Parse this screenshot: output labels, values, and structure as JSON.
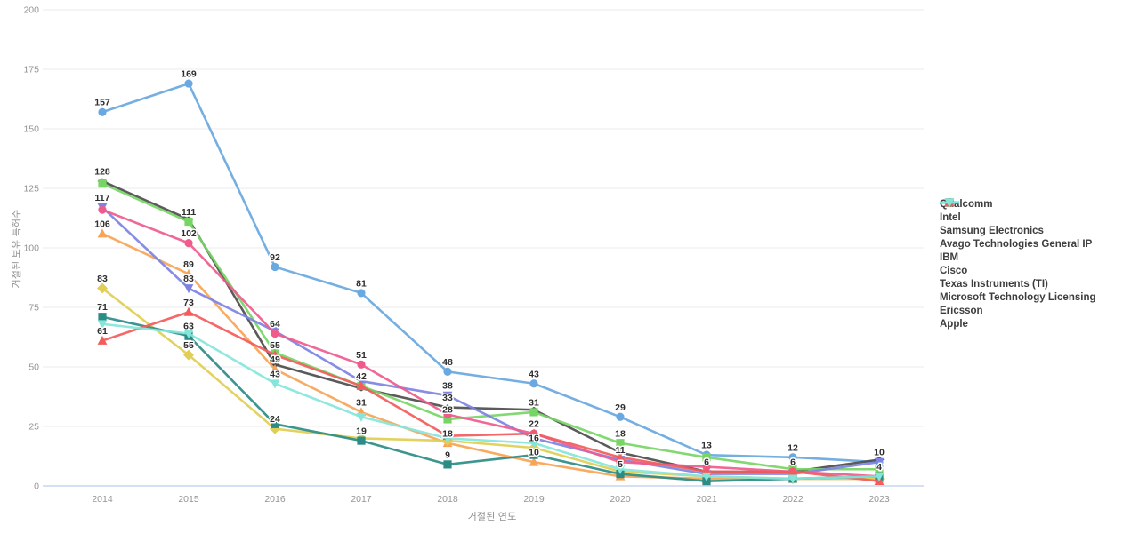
{
  "chart_data": {
    "type": "line",
    "title": "",
    "xlabel": "거절된 연도",
    "ylabel": "거절된 보유 특허수",
    "x": [
      2014,
      2015,
      2016,
      2017,
      2018,
      2019,
      2020,
      2021,
      2022,
      2023
    ],
    "ylim": [
      0,
      200
    ],
    "yticks": [
      0,
      25,
      50,
      75,
      100,
      125,
      150,
      175,
      200
    ],
    "grid": "horizontal-only",
    "legend_position": "right",
    "series": [
      {
        "name": "Qualcomm",
        "color": "#69a8e0",
        "marker": "circle",
        "values": [
          157,
          169,
          92,
          81,
          48,
          43,
          29,
          13,
          12,
          10
        ],
        "labeled_years": [
          2014,
          2015,
          2016,
          2017,
          2018,
          2019,
          2020,
          2021,
          2022,
          2023
        ]
      },
      {
        "name": "Intel",
        "color": "#4d4d4d",
        "marker": "diamond-h",
        "values": [
          128,
          112,
          51,
          41,
          33,
          32,
          14,
          6,
          6,
          11
        ],
        "labeled_years": [
          2014,
          2018
        ]
      },
      {
        "name": "Samsung Electronics",
        "color": "#77d565",
        "marker": "square",
        "values": [
          127,
          111,
          56,
          42,
          28,
          31,
          18,
          12,
          7,
          7
        ],
        "labeled_years": [
          2015,
          2017,
          2018,
          2019,
          2020
        ]
      },
      {
        "name": "Avago Technologies General IP",
        "color": "#f7a456",
        "marker": "triangle-up",
        "values": [
          106,
          89,
          49,
          31,
          18,
          10,
          4,
          3,
          3,
          3
        ],
        "labeled_years": [
          2014,
          2015,
          2016,
          2017,
          2018,
          2019
        ]
      },
      {
        "name": "IBM",
        "color": "#7d82e3",
        "marker": "triangle-down",
        "values": [
          117,
          83,
          65,
          44,
          38,
          20,
          11,
          5,
          5,
          10
        ],
        "labeled_years": [
          2014,
          2015,
          2018,
          2020
        ]
      },
      {
        "name": "Cisco",
        "color": "#ef5b8c",
        "marker": "circle",
        "values": [
          116,
          102,
          64,
          51,
          30,
          22,
          10,
          8,
          6,
          4
        ],
        "labeled_years": [
          2015,
          2016,
          2017,
          2019
        ]
      },
      {
        "name": "Texas Instruments (TI)",
        "color": "#e0ce55",
        "marker": "diamond",
        "values": [
          83,
          55,
          24,
          20,
          19,
          16,
          6,
          4,
          3,
          3
        ],
        "labeled_years": [
          2014,
          2015,
          2016,
          2019
        ]
      },
      {
        "name": "Microsoft Technology Licensing",
        "color": "#2b8c85",
        "marker": "square",
        "values": [
          71,
          63,
          26,
          19,
          9,
          13,
          5,
          2,
          3,
          4
        ],
        "labeled_years": [
          2014,
          2015,
          2017,
          2018,
          2020,
          2023
        ]
      },
      {
        "name": "Ericsson",
        "color": "#f25c5c",
        "marker": "triangle-up",
        "values": [
          61,
          73,
          55,
          42,
          21,
          22,
          12,
          6,
          6,
          2
        ],
        "labeled_years": [
          2014,
          2015,
          2016,
          2021,
          2022
        ]
      },
      {
        "name": "Apple",
        "color": "#84e6db",
        "marker": "triangle-down",
        "values": [
          68,
          64,
          43,
          29,
          20,
          18,
          7,
          4,
          3,
          4
        ],
        "labeled_years": [
          2016
        ]
      }
    ]
  },
  "style": {
    "grid_color": "#ebebeb",
    "axis_line_color": "#c9d6f0",
    "tick_label_color": "#949494",
    "data_label_color": "#2e2e2e"
  }
}
